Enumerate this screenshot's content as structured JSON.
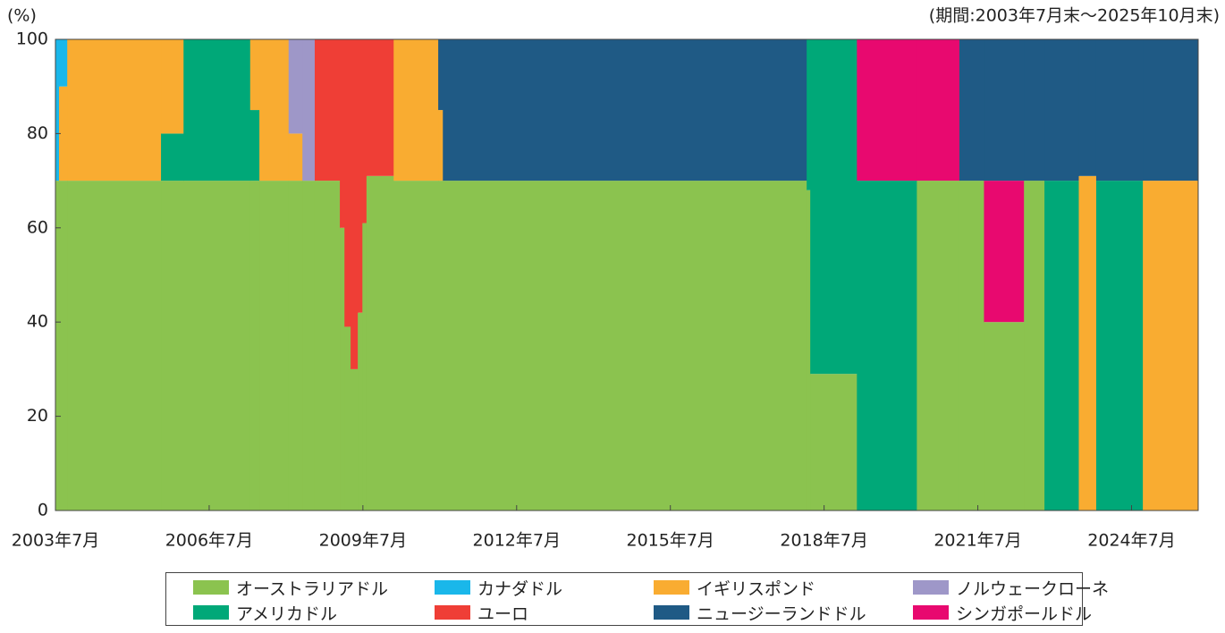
{
  "chart_data": {
    "type": "stacked-histogram",
    "ylabel": "(%)",
    "annotation": "(期間:2003年7月末～2025年10月末)",
    "bins": [
      2003.5,
      2003.57,
      2003.73,
      2005.56,
      2006.0,
      2007.3,
      2007.48,
      2008.05,
      2008.32,
      2008.56,
      2009.05,
      2009.14,
      2009.26,
      2009.4,
      2009.49,
      2009.57,
      2010.1,
      2010.97,
      2011.06,
      2018.16,
      2018.23,
      2019.14,
      2020.31,
      2021.14,
      2021.62,
      2022.4,
      2022.8,
      2023.47,
      2023.81,
      2024.72,
      2025.8
    ],
    "series": [
      {
        "name": "オーストラリアドル",
        "color": "#8bc34f",
        "values": [
          70,
          70,
          70,
          70,
          70,
          70,
          70,
          70,
          70,
          70,
          60,
          39,
          30,
          42,
          61,
          71,
          70,
          70,
          70,
          68,
          29,
          0,
          70,
          70,
          40,
          70,
          0,
          0,
          0,
          0
        ]
      },
      {
        "name": "アメリカドル",
        "color": "#00a878",
        "values": [
          0,
          0,
          0,
          10,
          30,
          15,
          0,
          0,
          0,
          0,
          0,
          0,
          0,
          0,
          0,
          0,
          0,
          0,
          0,
          32,
          71,
          70,
          0,
          0,
          0,
          0,
          70,
          0,
          70,
          0
        ]
      },
      {
        "name": "イギリスポンド",
        "color": "#f9ac31",
        "values": [
          0,
          20,
          30,
          20,
          0,
          15,
          30,
          10,
          0,
          0,
          0,
          0,
          0,
          0,
          0,
          0,
          30,
          15,
          0,
          0,
          0,
          0,
          0,
          0,
          0,
          0,
          0,
          71,
          0,
          70
        ]
      },
      {
        "name": "カナダドル",
        "color": "#1ab7ea",
        "values": [
          30,
          10,
          0,
          0,
          0,
          0,
          0,
          0,
          0,
          0,
          0,
          0,
          0,
          0,
          0,
          0,
          0,
          0,
          0,
          0,
          0,
          0,
          0,
          0,
          0,
          0,
          0,
          0,
          0,
          0
        ]
      },
      {
        "name": "ノルウェークローネ",
        "color": "#9e97c8",
        "values": [
          0,
          0,
          0,
          0,
          0,
          0,
          0,
          20,
          30,
          0,
          0,
          0,
          0,
          0,
          0,
          0,
          0,
          0,
          0,
          0,
          0,
          0,
          0,
          0,
          0,
          0,
          0,
          0,
          0,
          0
        ]
      },
      {
        "name": "ユーロ",
        "color": "#ef3e36",
        "values": [
          0,
          0,
          0,
          0,
          0,
          0,
          0,
          0,
          0,
          30,
          40,
          61,
          70,
          58,
          39,
          29,
          0,
          0,
          0,
          0,
          0,
          0,
          0,
          0,
          0,
          0,
          0,
          0,
          0,
          0
        ]
      },
      {
        "name": "シンガポールドル",
        "color": "#e8096f",
        "values": [
          0,
          0,
          0,
          0,
          0,
          0,
          0,
          0,
          0,
          0,
          0,
          0,
          0,
          0,
          0,
          0,
          0,
          0,
          0,
          0,
          0,
          30,
          30,
          0,
          30,
          0,
          0,
          0,
          0,
          0
        ]
      },
      {
        "name": "ニュージーランドドル",
        "color": "#1f5a85",
        "values": [
          0,
          0,
          0,
          0,
          0,
          0,
          0,
          0,
          0,
          0,
          0,
          0,
          0,
          0,
          0,
          0,
          0,
          15,
          30,
          0,
          0,
          0,
          0,
          30,
          30,
          30,
          30,
          29,
          30,
          30
        ]
      }
    ],
    "xlim": [
      2003.5,
      2025.8
    ],
    "xticks": [
      {
        "value": 2003.5,
        "label": "2003年7月"
      },
      {
        "value": 2006.5,
        "label": "2006年7月"
      },
      {
        "value": 2009.5,
        "label": "2009年7月"
      },
      {
        "value": 2012.5,
        "label": "2012年7月"
      },
      {
        "value": 2015.5,
        "label": "2015年7月"
      },
      {
        "value": 2018.5,
        "label": "2018年7月"
      },
      {
        "value": 2021.5,
        "label": "2021年7月"
      },
      {
        "value": 2024.5,
        "label": "2024年7月"
      }
    ],
    "ylim": [
      0,
      100
    ],
    "yticks": [
      0,
      20,
      40,
      60,
      80,
      100
    ]
  }
}
